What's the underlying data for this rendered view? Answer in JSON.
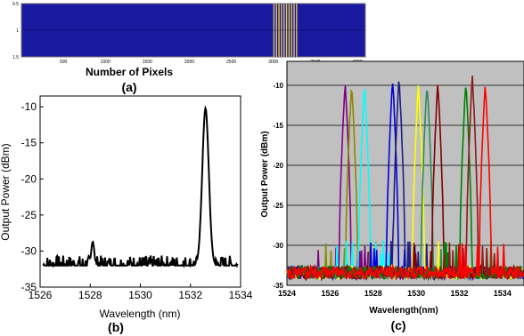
{
  "figure": {
    "panel_labels": [
      "(a)",
      "(b)",
      "(c)"
    ]
  },
  "chart_data": [
    {
      "panel": "(a)",
      "type": "heatmap",
      "xlabel": "Number of Pixels",
      "xticks": [
        500,
        1000,
        1500,
        2000,
        2500,
        3000,
        3500,
        4000
      ],
      "yticks": [
        "0.5",
        "1",
        "1.5"
      ],
      "xlim": [
        0,
        4096
      ],
      "ylim": [
        0.5,
        1.5
      ],
      "background_color": "#1a1aa0",
      "stripe_region": [
        3000,
        3300
      ],
      "stripe_colors": [
        "#e8c64a",
        "#1a1aa0"
      ]
    },
    {
      "panel": "(b)",
      "type": "line",
      "xlabel": "Wavelength (nm)",
      "ylabel": "Output Power (dBm)",
      "xlim": [
        1526,
        1534
      ],
      "ylim": [
        -35,
        -8.5
      ],
      "xticks": [
        1526,
        1528,
        1530,
        1532,
        1534
      ],
      "yticks": [
        -10,
        -15,
        -20,
        -25,
        -30,
        -35
      ],
      "grid": false,
      "series": [
        {
          "color": "#000000",
          "noise_floor": -32,
          "peaks": [
            {
              "center": 1532.6,
              "peak": -10.2,
              "width": 0.13
            },
            {
              "center": 1528.1,
              "peak": -28.7,
              "width": 0.06
            }
          ]
        }
      ]
    },
    {
      "panel": "(c)",
      "type": "line",
      "xlabel": "Wavelength(nm)",
      "ylabel": "Output Power (dBm)",
      "xlim": [
        1524,
        1535
      ],
      "ylim": [
        -35,
        -7
      ],
      "xticks": [
        1524,
        1526,
        1528,
        1530,
        1532,
        1534
      ],
      "yticks": [
        -10,
        -15,
        -20,
        -25,
        -30,
        -35
      ],
      "grid": true,
      "background": "#c0c0c0",
      "series": [
        {
          "color": "#800080",
          "center": 1526.7,
          "peak": -9.6
        },
        {
          "color": "#8a8a00",
          "center": 1527.0,
          "peak": -9.8
        },
        {
          "color": "#00ffff",
          "center": 1527.6,
          "peak": -9.7
        },
        {
          "color": "#0000dd",
          "center": 1528.9,
          "peak": -9.0
        },
        {
          "color": "#1e1e8c",
          "center": 1529.2,
          "peak": -8.8
        },
        {
          "color": "#ffff00",
          "center": 1530.1,
          "peak": -9.7
        },
        {
          "color": "#2e8b57",
          "center": 1530.5,
          "peak": -9.6
        },
        {
          "color": "#800000",
          "center": 1531.0,
          "peak": -9.5
        },
        {
          "color": "#008000",
          "center": 1532.3,
          "peak": -9.5
        },
        {
          "color": "#8b1a1a",
          "center": 1532.6,
          "peak": -8.8
        },
        {
          "color": "#ff0000",
          "center": 1533.2,
          "peak": -9.7
        }
      ]
    }
  ]
}
